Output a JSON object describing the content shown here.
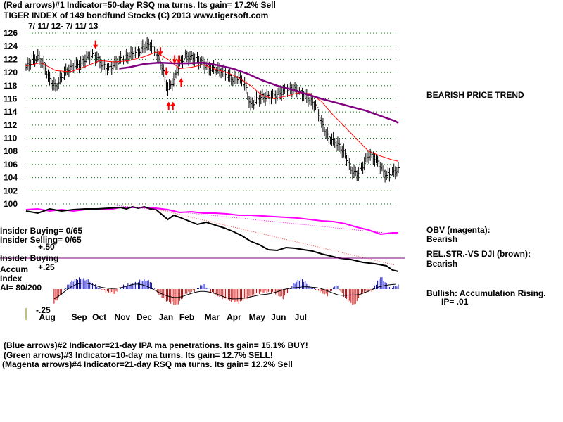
{
  "header": {
    "line1": "(Red arrows)#1 Indicator=50-day RSQ ma turns. Its gain= 17.2% Sell",
    "line2": "TIGER INDEX of  149 bondfund Stocks  (C) 2013  www.tigersoft.com",
    "line3": "7/ 11/ 12-  7/ 11/ 13"
  },
  "right_notes": {
    "trend": "BEARISH PRICE TREND",
    "obv_label": "OBV (magenta):",
    "obv_value": "Bearish",
    "relstr_label": "REL.STR.-VS DJI (brown):",
    "relstr_value": "Bearish",
    "accum_label": "Bullish: Accumulation Rising.",
    "ip_value": "IP=  .01"
  },
  "left_notes": {
    "insider_buying_count": "Insider Buying= 0/65",
    "insider_selling_count": "Insider Selling= 0/65",
    "insider_buying_line": "Insider Buying",
    "accum": "Accum",
    "index": "Index",
    "ai": "AI= 80/200",
    "plus50": "+.50",
    "plus25": "+.25",
    "minus25": "-.25"
  },
  "footer": {
    "line1": "(Blue arrows)#2 Indicator=21-day IPA ma penetrations. Its gain= 15.1% BUY!",
    "line2": "(Green arrows)#3 Indicator=10-day ma turns.  Its gain= 12.7% SELL!",
    "line3": "(Magenta arrows)#4 Indicator=21-day RSQ ma turns. Its gain= 12.2% Sell"
  },
  "colors": {
    "price": "#000000",
    "ma21": "#ff0000",
    "ma50": "#800080",
    "obv": "#ff00ff",
    "relstr": "#000000",
    "grid": "#008000",
    "accum_pos": "#0000cc",
    "accum_neg": "#cc0000",
    "arrow": "#ff0000"
  },
  "chart_data": {
    "type": "line",
    "title": "TIGER INDEX of 149 bondfund Stocks",
    "period": "7/11/12 - 7/11/13",
    "y_ticks": [
      126,
      124,
      122,
      120,
      118,
      116,
      114,
      112,
      110,
      108,
      106,
      104,
      102,
      100
    ],
    "ylim": [
      99,
      126.5
    ],
    "x_ticks": [
      "Aug",
      "Sep",
      "Oct",
      "Nov",
      "Dec",
      "Jan",
      "Feb",
      "Mar",
      "Apr",
      "May",
      "Jun",
      "Jul"
    ],
    "series": [
      {
        "name": "Tiger Index (price)",
        "x": [
          0,
          4,
          8,
          12,
          16,
          20,
          24,
          28,
          32,
          36,
          40,
          44,
          48,
          52,
          56,
          60,
          64,
          68,
          72,
          76,
          80,
          84,
          88,
          92,
          96,
          100,
          104,
          108,
          112,
          116,
          120,
          124,
          128,
          132,
          136,
          140,
          144,
          148,
          152,
          156,
          160,
          164,
          168,
          172,
          176,
          180,
          184,
          188,
          192,
          196,
          200,
          204,
          208,
          212,
          216,
          220,
          224,
          228,
          232,
          236,
          240,
          244,
          248,
          252
        ],
        "values": [
          120.8,
          121.8,
          122.3,
          121.2,
          118.8,
          117.8,
          119.2,
          120.4,
          121.0,
          121.2,
          122.0,
          122.6,
          122.3,
          121.0,
          120.6,
          121.3,
          122.0,
          122.4,
          122.8,
          123.2,
          123.9,
          124.3,
          123.0,
          120.8,
          117.5,
          118.8,
          121.5,
          122.5,
          122.3,
          122.0,
          121.3,
          120.7,
          120.5,
          120.3,
          119.6,
          118.9,
          119.3,
          118.2,
          115.0,
          115.8,
          116.3,
          116.3,
          116.5,
          116.9,
          117.4,
          117.6,
          117.2,
          116.7,
          115.8,
          115.0,
          112.3,
          110.3,
          109.6,
          108.8,
          107.5,
          105.2,
          104.5,
          105.8,
          107.5,
          107.0,
          105.6,
          104.3,
          104.8,
          105.2
        ]
      },
      {
        "name": "21-day MA (red)",
        "x": [
          0,
          10,
          20,
          30,
          40,
          50,
          60,
          70,
          80,
          88,
          96,
          104,
          112,
          120,
          128,
          136,
          144,
          152,
          160,
          168,
          176,
          184,
          192,
          200,
          208,
          216,
          224,
          232,
          240,
          248,
          252
        ],
        "values": [
          121.0,
          121.5,
          120.3,
          120.1,
          120.9,
          121.8,
          121.6,
          121.8,
          122.4,
          123.1,
          122.0,
          120.6,
          120.8,
          121.2,
          120.5,
          120.0,
          119.2,
          118.0,
          116.5,
          116.0,
          116.4,
          116.9,
          116.8,
          115.6,
          113.5,
          111.7,
          109.8,
          108.0,
          107.3,
          106.7,
          106.5
        ]
      },
      {
        "name": "50-day MA (purple)",
        "x": [
          63,
          70,
          80,
          90,
          100,
          110,
          120,
          130,
          140,
          150,
          160,
          170,
          180,
          190,
          200,
          210,
          220,
          230,
          240,
          250,
          252
        ],
        "values": [
          120.6,
          120.8,
          121.3,
          121.5,
          121.4,
          121.4,
          121.5,
          121.1,
          120.6,
          119.8,
          118.8,
          118.0,
          117.4,
          116.7,
          116.0,
          115.4,
          114.8,
          114.2,
          113.4,
          112.6,
          112.3
        ]
      },
      {
        "name": "OBV (magenta)",
        "x": [
          0,
          8,
          16,
          24,
          32,
          40,
          48,
          56,
          64,
          72,
          80,
          88,
          96,
          104,
          112,
          120,
          128,
          136,
          144,
          152,
          160,
          168,
          176,
          184,
          192,
          200,
          208,
          216,
          224,
          232,
          240,
          248,
          252
        ],
        "values": [
          298,
          297,
          300,
          298,
          300,
          298,
          298,
          298,
          295,
          295,
          295,
          296,
          298,
          302,
          301,
          303,
          303,
          304,
          306,
          306,
          307,
          308,
          309,
          310,
          312,
          314,
          315,
          318,
          323,
          327,
          333,
          331,
          331
        ]
      },
      {
        "name": "Rel. Str. vs DJI (black)",
        "x": [
          0,
          8,
          16,
          24,
          32,
          40,
          48,
          56,
          64,
          68,
          72,
          76,
          80,
          84,
          88,
          92,
          96,
          100,
          104,
          110,
          116,
          122,
          128,
          134,
          140,
          146,
          152,
          158,
          164,
          170,
          176,
          182,
          188,
          194,
          200,
          206,
          212,
          220,
          228,
          236,
          244,
          248,
          252
        ],
        "values": [
          300,
          303,
          297,
          300,
          298,
          297,
          297,
          296,
          295,
          297,
          294,
          296,
          294,
          297,
          298,
          305,
          312,
          306,
          309,
          314,
          319,
          316,
          320,
          324,
          329,
          335,
          343,
          348,
          355,
          356,
          352,
          353,
          355,
          357,
          361,
          364,
          367,
          369,
          373,
          375,
          378,
          384,
          386
        ]
      },
      {
        "name": "Accumulation Index",
        "x": [
          0,
          6,
          12,
          18,
          24,
          30,
          36,
          42,
          48,
          54,
          60,
          66,
          72,
          78,
          84,
          90,
          96,
          102,
          108,
          114,
          120,
          126,
          132,
          138,
          144,
          150,
          156,
          162,
          168,
          174,
          180,
          186,
          192,
          198,
          204,
          210,
          216,
          222,
          228,
          234,
          240,
          246,
          252
        ],
        "values": [
          -0.05,
          -0.15,
          -0.25,
          -0.18,
          -0.05,
          0.08,
          0.12,
          0.1,
          0.03,
          -0.03,
          -0.05,
          0.04,
          0.06,
          0.1,
          0.09,
          -0.06,
          -0.14,
          -0.18,
          -0.05,
          -0.02,
          0.06,
          -0.04,
          -0.09,
          -0.13,
          -0.15,
          -0.1,
          -0.05,
          -0.03,
          -0.04,
          -0.1,
          0.04,
          0.12,
          0.03,
          -0.02,
          -0.07,
          0.05,
          -0.1,
          -0.18,
          -0.04,
          -0.02,
          0.14,
          0.02,
          0.04
        ]
      }
    ],
    "arrows": [
      {
        "x": 47,
        "dir": "down",
        "count": 1
      },
      {
        "x": 91,
        "dir": "down",
        "count": 1
      },
      {
        "x": 95,
        "dir": "down",
        "count": 1
      },
      {
        "x": 102,
        "dir": "down",
        "count": 2
      },
      {
        "x": 98,
        "dir": "up",
        "count": 2
      },
      {
        "x": 105,
        "dir": "up",
        "count": 1
      }
    ]
  }
}
